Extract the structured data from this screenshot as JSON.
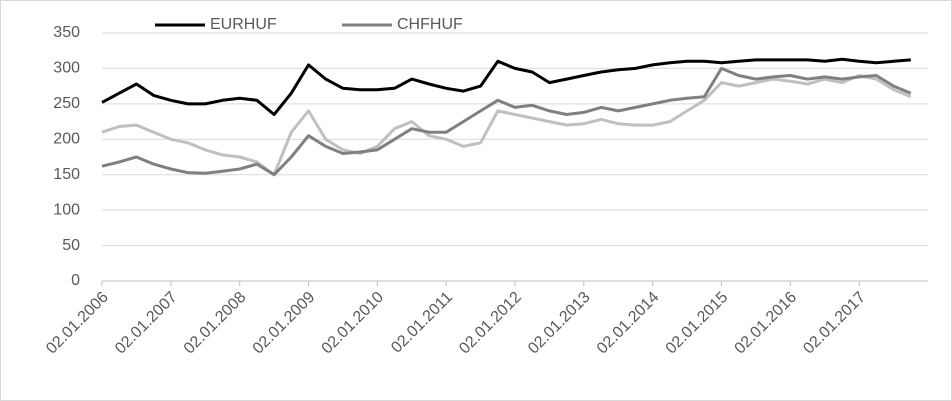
{
  "chart_data": {
    "type": "line",
    "categories": [
      "02.01.2006",
      null,
      null,
      null,
      "02.01.2007",
      null,
      null,
      null,
      "02.01.2008",
      null,
      null,
      null,
      "02.01.2009",
      null,
      null,
      null,
      "02.01.2010",
      null,
      null,
      null,
      "02.01.2011",
      null,
      null,
      null,
      "02.01.2012",
      null,
      null,
      null,
      "02.01.2013",
      null,
      null,
      null,
      "02.01.2014",
      null,
      null,
      null,
      "02.01.2015",
      null,
      null,
      null,
      "02.01.2016",
      null,
      null,
      null,
      "02.01.2017",
      null,
      null,
      null
    ],
    "series": [
      {
        "name": "EURHUF",
        "color": "#000000",
        "values": [
          252,
          265,
          278,
          262,
          255,
          250,
          250,
          255,
          258,
          255,
          235,
          265,
          305,
          285,
          272,
          270,
          270,
          272,
          285,
          278,
          272,
          268,
          275,
          310,
          300,
          295,
          280,
          285,
          290,
          295,
          298,
          300,
          305,
          308,
          310,
          310,
          308,
          310,
          312,
          312,
          312,
          312,
          310,
          313,
          310,
          308,
          310,
          312
        ]
      },
      {
        "name": "CHFHUF",
        "color": "#808080",
        "values": [
          162,
          168,
          175,
          165,
          158,
          153,
          152,
          155,
          158,
          165,
          150,
          175,
          205,
          190,
          180,
          182,
          185,
          200,
          215,
          210,
          210,
          225,
          240,
          255,
          245,
          248,
          240,
          235,
          238,
          245,
          240,
          245,
          250,
          255,
          258,
          260,
          300,
          290,
          285,
          288,
          290,
          285,
          288,
          285,
          288,
          290,
          275,
          265
        ]
      },
      {
        "color": "#c0c0c0",
        "values": [
          210,
          218,
          220,
          210,
          200,
          195,
          185,
          178,
          175,
          168,
          150,
          210,
          240,
          200,
          185,
          180,
          190,
          215,
          225,
          205,
          200,
          190,
          195,
          240,
          235,
          230,
          225,
          220,
          222,
          228,
          222,
          220,
          220,
          225,
          240,
          255,
          280,
          275,
          280,
          285,
          282,
          278,
          285,
          280,
          290,
          285,
          270,
          260
        ]
      }
    ],
    "ylim": [
      0,
      350
    ],
    "yticks": [
      0,
      50,
      100,
      150,
      200,
      250,
      300,
      350
    ],
    "grid": true
  }
}
